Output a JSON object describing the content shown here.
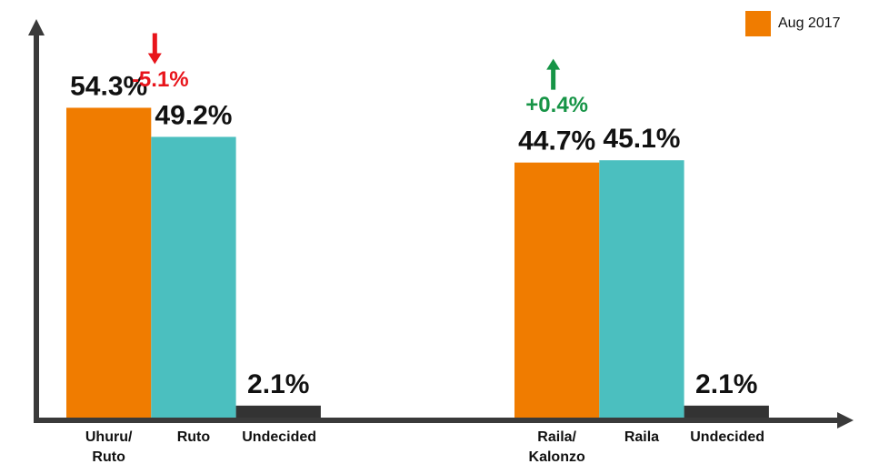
{
  "chart_data": {
    "type": "bar",
    "categories": [
      "Uhuru/ Ruto",
      "Ruto",
      "Undecided",
      "Raila/ Kalonzo",
      "Raila",
      "Undecided"
    ],
    "values": [
      54.3,
      49.2,
      2.1,
      44.7,
      45.1,
      2.1
    ],
    "value_labels": [
      "54.3%",
      "49.2%",
      "2.1%",
      "44.7%",
      "45.1%",
      "2.1%"
    ],
    "colors": [
      "#f07c00",
      "#4bbfbf",
      "#333333",
      "#f07c00",
      "#4bbfbf",
      "#333333"
    ],
    "ylim": [
      0,
      70
    ],
    "legend": {
      "label": "Aug 2017",
      "color": "#f07c00",
      "position": "top-right"
    },
    "annotations": [
      {
        "text": "-5.1%",
        "color": "#e8141b",
        "direction": "down",
        "category": 1
      },
      {
        "text": "+0.4%",
        "color": "#169446",
        "direction": "up",
        "category": 3
      }
    ]
  }
}
